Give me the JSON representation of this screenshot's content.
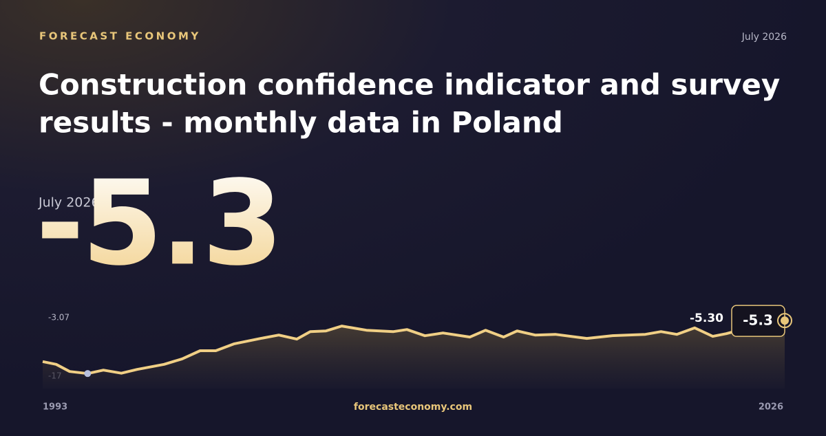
{
  "brand": "FORECAST ECONOMY",
  "date": "July 2026",
  "title_lines": [
    "Construction confidence indicator and survey",
    "results - monthly data in Poland"
  ],
  "headline": {
    "label": "July 2026",
    "value": "-5.3"
  },
  "footer": "forecasteconomy.com",
  "chart_data": {
    "type": "line",
    "x": [
      1993,
      1993.6,
      1994.2,
      1995,
      1995.7,
      1996.5,
      1997.2,
      1998.4,
      1999.2,
      2000,
      2000.7,
      2001.5,
      2002.7,
      2003.5,
      2004.3,
      2004.9,
      2005.6,
      2006.3,
      2007.4,
      2008.6,
      2009.2,
      2010,
      2010.8,
      2012,
      2012.7,
      2013.5,
      2014.1,
      2014.9,
      2015.8,
      2017.2,
      2018.3,
      2019.8,
      2020.5,
      2021.2,
      2022,
      2022.8,
      2023.4,
      2024.2,
      2025.1,
      2026
    ],
    "series": [
      {
        "name": "Construction confidence indicator",
        "color": "#f0cf85",
        "values": [
          -13.5,
          -14.3,
          -16.4,
          -17,
          -16.0,
          -16.9,
          -15.8,
          -14.3,
          -12.7,
          -10.3,
          -10.3,
          -8.3,
          -6.7,
          -5.7,
          -6.9,
          -4.7,
          -4.5,
          -3.07,
          -4.3,
          -4.7,
          -4.1,
          -5.9,
          -5.1,
          -6.3,
          -4.3,
          -6.3,
          -4.5,
          -5.7,
          -5.5,
          -6.7,
          -5.9,
          -5.5,
          -4.7,
          -5.5,
          -3.6,
          -6.1,
          -5.3,
          -3.9,
          -3.5,
          -5.3
        ]
      }
    ],
    "xlim": [
      1993,
      2026
    ],
    "xticks": [
      1993,
      2026
    ],
    "ylim": [
      -21.4,
      2.2
    ],
    "yticks": [
      -3.07,
      -17
    ],
    "last_label": "-5.30",
    "badge": "-5.3"
  }
}
